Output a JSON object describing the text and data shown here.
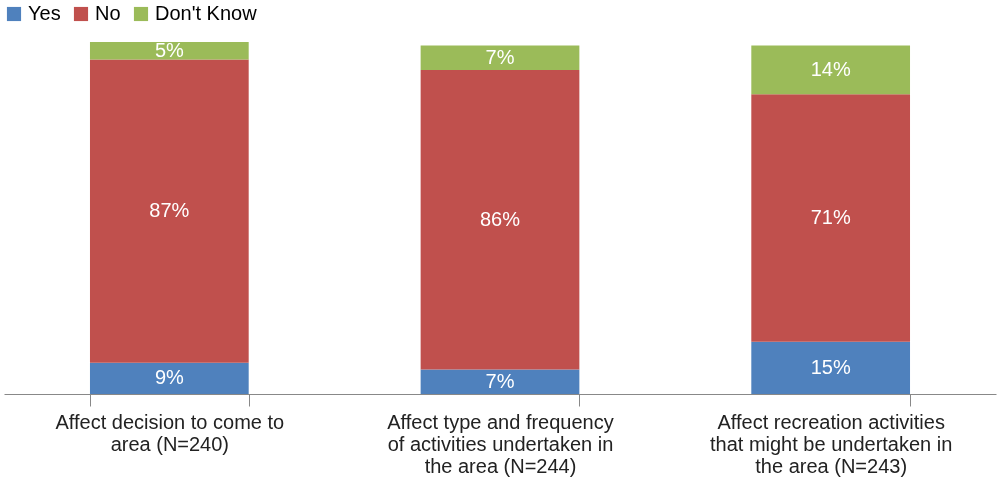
{
  "chart_data": {
    "type": "bar",
    "stacked": true,
    "legend": "top",
    "grid": false,
    "categories": [
      "Affect decision to come to area (N=240)",
      "Affect type and frequency of activities undertaken in the area (N=244)",
      "Affect recreation activities that might be undertaken in the area (N=243)"
    ],
    "series": [
      {
        "name": "Yes",
        "color": "#4f81bd",
        "values": [
          9,
          7,
          15
        ],
        "value_labels": [
          "9%",
          "7%",
          "15%"
        ]
      },
      {
        "name": "No",
        "color": "#c0504d",
        "values": [
          87,
          86,
          71
        ],
        "value_labels": [
          "87%",
          "86%",
          "71%"
        ]
      },
      {
        "name": "Don't Know",
        "color": "#9bbb59",
        "values": [
          5,
          7,
          14
        ],
        "value_labels": [
          "5%",
          "7%",
          "14%"
        ]
      }
    ]
  }
}
